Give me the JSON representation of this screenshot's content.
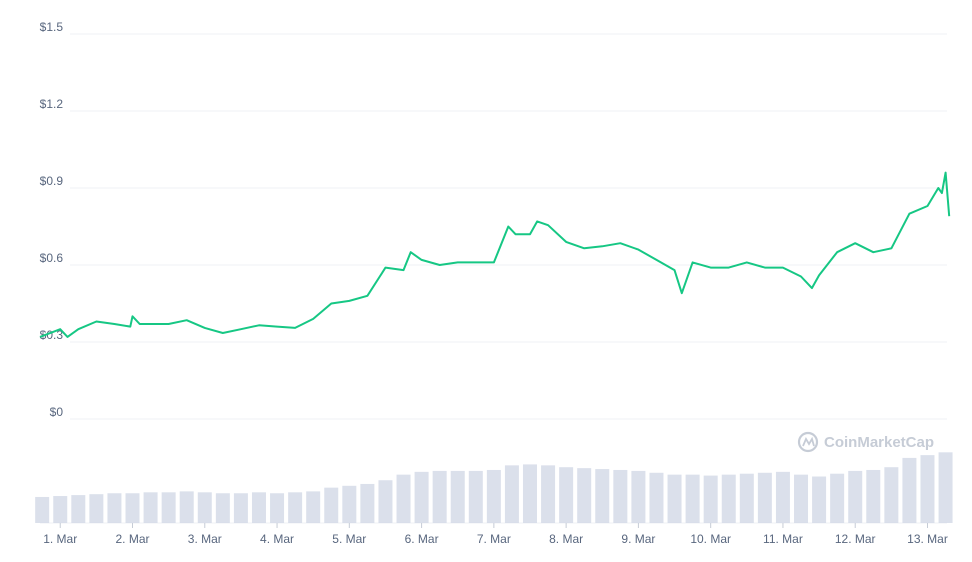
{
  "chart_data": {
    "type": "line",
    "watermark": "CoinMarketCap",
    "xlim": [
      -0.28,
      12.27
    ],
    "xticks": [
      {
        "value": 0,
        "label": "1. Mar"
      },
      {
        "value": 1,
        "label": "2. Mar"
      },
      {
        "value": 2,
        "label": "3. Mar"
      },
      {
        "value": 3,
        "label": "4. Mar"
      },
      {
        "value": 4,
        "label": "5. Mar"
      },
      {
        "value": 5,
        "label": "6. Mar"
      },
      {
        "value": 6,
        "label": "7. Mar"
      },
      {
        "value": 7,
        "label": "8. Mar"
      },
      {
        "value": 8,
        "label": "9. Mar"
      },
      {
        "value": 9,
        "label": "10. Mar"
      },
      {
        "value": 10,
        "label": "11. Mar"
      },
      {
        "value": 11,
        "label": "12. Mar"
      },
      {
        "value": 12,
        "label": "13. Mar"
      }
    ],
    "ylim": [
      0,
      1.5
    ],
    "yticks": [
      {
        "value": 0,
        "label": "$0"
      },
      {
        "value": 0.3,
        "label": "$0.3"
      },
      {
        "value": 0.6,
        "label": "$0.6"
      },
      {
        "value": 0.9,
        "label": "$0.9"
      },
      {
        "value": 1.2,
        "label": "$1.2"
      },
      {
        "value": 1.5,
        "label": "$1.5"
      }
    ],
    "y2lim": [
      0,
      100
    ],
    "grid": true,
    "x": [
      -0.28,
      0,
      0.1,
      0.25,
      0.5,
      0.75,
      0.97,
      1.0,
      1.1,
      1.25,
      1.5,
      1.75,
      2.0,
      2.25,
      2.5,
      2.75,
      3.0,
      3.25,
      3.5,
      3.75,
      4.0,
      4.25,
      4.5,
      4.75,
      4.85,
      5.0,
      5.25,
      5.5,
      5.75,
      6.0,
      6.2,
      6.3,
      6.5,
      6.6,
      6.75,
      7.0,
      7.25,
      7.5,
      7.75,
      8.0,
      8.25,
      8.5,
      8.6,
      8.75,
      9.0,
      9.25,
      9.5,
      9.75,
      10.0,
      10.25,
      10.4,
      10.5,
      10.75,
      11.0,
      11.25,
      11.5,
      11.75,
      12.0,
      12.15,
      12.2,
      12.25,
      12.3
    ],
    "series": [
      {
        "color": "#16c784",
        "values": [
          0.32,
          0.35,
          0.32,
          0.35,
          0.38,
          0.37,
          0.36,
          0.4,
          0.37,
          0.37,
          0.37,
          0.385,
          0.355,
          0.335,
          0.35,
          0.365,
          0.36,
          0.355,
          0.39,
          0.45,
          0.46,
          0.48,
          0.59,
          0.58,
          0.65,
          0.62,
          0.6,
          0.61,
          0.61,
          0.61,
          0.75,
          0.72,
          0.72,
          0.77,
          0.755,
          0.69,
          0.665,
          0.673,
          0.685,
          0.66,
          0.62,
          0.58,
          0.49,
          0.61,
          0.59,
          0.59,
          0.61,
          0.59,
          0.59,
          0.555,
          0.51,
          0.56,
          0.65,
          0.685,
          0.65,
          0.665,
          0.8,
          0.83,
          0.9,
          0.88,
          0.96,
          0.79
        ]
      },
      {
        "type": "bar",
        "axis": "y2",
        "color": "#cfd6e4",
        "x": [
          -0.25,
          0,
          0.25,
          0.5,
          0.75,
          1,
          1.25,
          1.5,
          1.75,
          2,
          2.25,
          2.5,
          2.75,
          3,
          3.25,
          3.5,
          3.75,
          4,
          4.25,
          4.5,
          4.75,
          5,
          5.25,
          5.5,
          5.75,
          6,
          6.25,
          6.5,
          6.75,
          7,
          7.25,
          7.5,
          7.75,
          8,
          8.25,
          8.5,
          8.75,
          9,
          9.25,
          9.5,
          9.75,
          10,
          10.25,
          10.5,
          10.75,
          11,
          11.25,
          11.5,
          11.75,
          12,
          12.25
        ],
        "values": [
          28,
          29,
          30,
          31,
          32,
          32,
          33,
          33,
          34,
          33,
          32,
          32,
          33,
          32,
          33,
          34,
          38,
          40,
          42,
          46,
          52,
          55,
          56,
          56,
          56,
          57,
          62,
          63,
          62,
          60,
          59,
          58,
          57,
          56,
          54,
          52,
          52,
          51,
          52,
          53,
          54,
          55,
          52,
          50,
          53,
          56,
          57,
          60,
          70,
          73,
          76
        ]
      }
    ]
  }
}
